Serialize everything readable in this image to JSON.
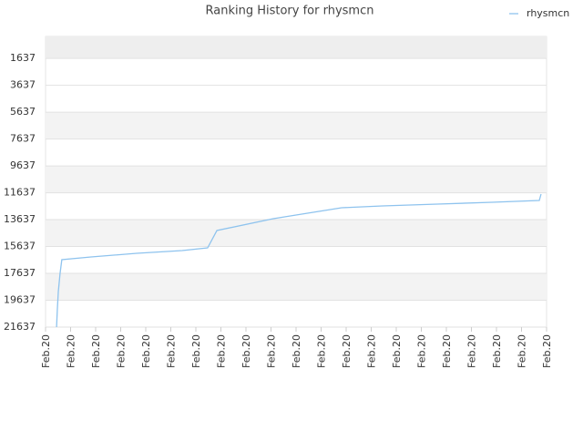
{
  "chart_data": {
    "type": "line",
    "title": "Ranking History for rhysmcn",
    "x": [
      0.44,
      0.47,
      0.51,
      0.58,
      0.65,
      1.82,
      3.64,
      5.45,
      6.47,
      6.84,
      9.09,
      11.82,
      13.45,
      15.64,
      17.82,
      19.71,
      19.78
    ],
    "series": [
      {
        "name": "rhysmcn",
        "color": "#8ec3ee",
        "values": [
          21637,
          20350,
          18992,
          17635,
          16618,
          16414,
          16143,
          15940,
          15736,
          14447,
          13566,
          12752,
          12617,
          12481,
          12345,
          12209,
          11734
        ]
      }
    ],
    "xlim": [
      0,
      20
    ],
    "xticks": [
      {
        "value": 0,
        "label": "Feb.20"
      },
      {
        "value": 1,
        "label": "Feb.20"
      },
      {
        "value": 2,
        "label": "Feb.20"
      },
      {
        "value": 3,
        "label": "Feb.20"
      },
      {
        "value": 4,
        "label": "Feb.20"
      },
      {
        "value": 5,
        "label": "Feb.20"
      },
      {
        "value": 6,
        "label": "Feb.20"
      },
      {
        "value": 7,
        "label": "Feb.20"
      },
      {
        "value": 8,
        "label": "Feb.20"
      },
      {
        "value": 9,
        "label": "Feb.20"
      },
      {
        "value": 10,
        "label": "Feb.20"
      },
      {
        "value": 11,
        "label": "Feb.20"
      },
      {
        "value": 12,
        "label": "Feb.20"
      },
      {
        "value": 13,
        "label": "Feb.20"
      },
      {
        "value": 14,
        "label": "Feb.20"
      },
      {
        "value": 15,
        "label": "Feb.20"
      },
      {
        "value": 16,
        "label": "Feb.20"
      },
      {
        "value": 17,
        "label": "Feb.20"
      },
      {
        "value": 18,
        "label": "Feb.20"
      },
      {
        "value": 19,
        "label": "Feb.20"
      },
      {
        "value": 20,
        "label": "Feb.20"
      }
    ],
    "ylim": [
      21637,
      0
    ],
    "yticks": [
      1637,
      3637,
      5637,
      7637,
      9637,
      11637,
      13637,
      15637,
      17637,
      19637,
      21637
    ],
    "grid": true,
    "legend": "top-right"
  }
}
